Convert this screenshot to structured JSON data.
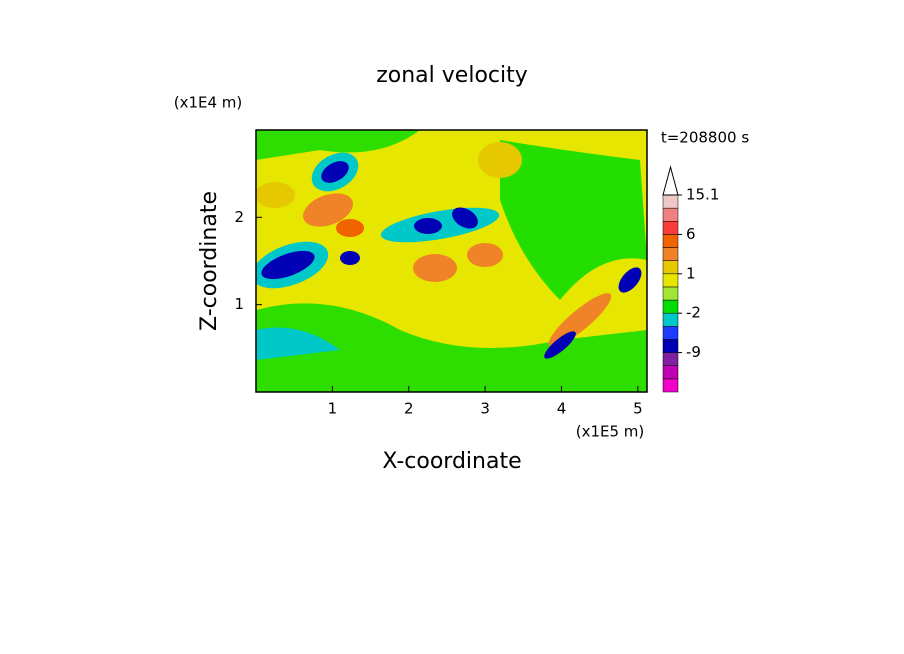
{
  "chart_data": {
    "type": "contour",
    "title": "zonal velocity",
    "x_label": "X-coordinate",
    "y_label": "Z-coordinate",
    "x_unit": "(x1E5 m)",
    "y_unit": "(x1E4 m)",
    "annotation": "t=208800 s",
    "xlim": [
      0,
      5.12
    ],
    "ylim": [
      0,
      3.0
    ],
    "xticks": [
      1,
      2,
      3,
      4,
      5
    ],
    "yticks": [
      1,
      2
    ],
    "colorbar": {
      "colors": [
        "#f000c8",
        "#c000b4",
        "#8020a0",
        "#0000b4",
        "#1e3cff",
        "#00c8c8",
        "#00dc00",
        "#a0e632",
        "#e6e600",
        "#e6c800",
        "#f08228",
        "#f06400",
        "#fa3c3c",
        "#f08080",
        "#f0c8c8",
        "#ffffff"
      ],
      "ticks": [
        -9,
        -2,
        1,
        6,
        15.1
      ]
    }
  }
}
